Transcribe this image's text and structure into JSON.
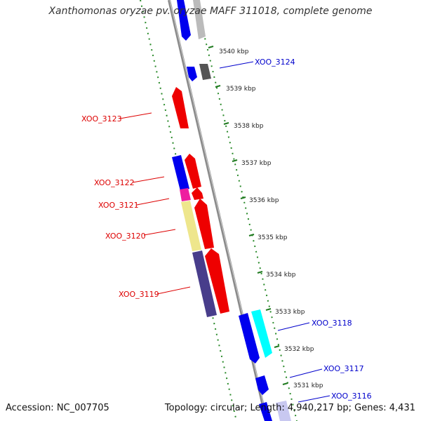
{
  "title": "Xanthomonas oryzae pv. oryzae MAFF 311018, complete genome",
  "footer": {
    "accession": "Accession: NC_007705",
    "stats": "Topology: circular; Length: 4,940,217 bp; Genes: 4,431"
  },
  "colors": {
    "backbone": "#8a8a8a",
    "tick_ring": "#2a8a2a",
    "forward_label": "#0000cc",
    "reverse_label": "#dd0000"
  },
  "scale_labels": [
    "3540 kbp",
    "3539 kbp",
    "3538 kbp",
    "3537 kbp",
    "3536 kbp",
    "3535 kbp",
    "3534 kbp",
    "3533 kbp",
    "3532 kbp",
    "3531 kbp"
  ],
  "gene_labels": [
    {
      "id": "XOO_3124",
      "strand": "forward"
    },
    {
      "id": "XOO_3123",
      "strand": "reverse"
    },
    {
      "id": "XOO_3122",
      "strand": "reverse"
    },
    {
      "id": "XOO_3121",
      "strand": "reverse"
    },
    {
      "id": "XOO_3120",
      "strand": "reverse"
    },
    {
      "id": "XOO_3119",
      "strand": "reverse"
    },
    {
      "id": "XOO_3118",
      "strand": "forward"
    },
    {
      "id": "XOO_3117",
      "strand": "forward"
    },
    {
      "id": "XOO_3116",
      "strand": "forward"
    }
  ]
}
